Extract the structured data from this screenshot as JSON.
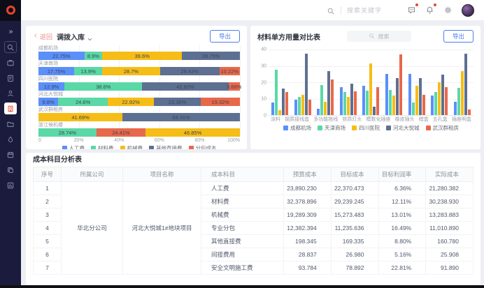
{
  "topbar": {
    "search_placeholder": "搜索关键字",
    "icons": [
      {
        "name": "message-icon",
        "glyph": "chat",
        "badge": true
      },
      {
        "name": "bell-icon",
        "glyph": "bell",
        "badge": true
      },
      {
        "name": "gear-icon",
        "glyph": "gear",
        "badge": false
      }
    ]
  },
  "sidebar": {
    "items": [
      {
        "name": "sidebar-collapse",
        "glyph": "collapse"
      },
      {
        "name": "sidebar-item-search",
        "glyph": "search",
        "boxed": true
      },
      {
        "name": "sidebar-item-briefcase",
        "glyph": "briefcase"
      },
      {
        "name": "sidebar-item-clipboard",
        "glyph": "clipboard"
      },
      {
        "name": "sidebar-item-user",
        "glyph": "user"
      },
      {
        "name": "sidebar-item-cost",
        "glyph": "building",
        "active": true
      },
      {
        "name": "sidebar-item-folder",
        "glyph": "folder"
      },
      {
        "name": "sidebar-item-droplet",
        "glyph": "droplet"
      },
      {
        "name": "sidebar-item-calendar",
        "glyph": "calendar"
      },
      {
        "name": "sidebar-item-copy",
        "glyph": "copy"
      },
      {
        "name": "sidebar-item-report",
        "glyph": "report"
      }
    ]
  },
  "left_panel": {
    "back_label": "返回",
    "title": "调拨入库",
    "export_label": "导出"
  },
  "right_panel": {
    "title": "材料单方用量对比表",
    "search_placeholder": "搜索",
    "export_label": "导出"
  },
  "colors": {
    "accent_blue": "#4c7df0",
    "active_red": "#e8442e",
    "series": [
      "#5B8FF9",
      "#5AD8A6",
      "#F6BD16",
      "#5D7092",
      "#E8684A"
    ]
  },
  "chart_data": [
    {
      "type": "bar",
      "stacked": true,
      "horizontal": true,
      "title": "调拨入库",
      "xlim": [
        0,
        100
      ],
      "x_ticks": [
        "0",
        "20%",
        "40%",
        "60%",
        "80%",
        "100%"
      ],
      "legend": [
        "人工费",
        "材料费",
        "机械费",
        "其他直接费",
        "分包成本"
      ],
      "legend_colors": [
        "#5B8FF9",
        "#5AD8A6",
        "#F6BD16",
        "#5D7092",
        "#E8684A"
      ],
      "rows": [
        {
          "category": "成都机场",
          "segments": [
            {
              "series": "人工费",
              "value": 22.75
            },
            {
              "series": "材料费",
              "value": 8.9
            },
            {
              "series": "机械费",
              "value": 39.6
            },
            {
              "series": "其他直接费",
              "value": 28.75
            }
          ]
        },
        {
          "category": "天津商场",
          "segments": [
            {
              "series": "人工费",
              "value": 17.75
            },
            {
              "series": "材料费",
              "value": 13.9
            },
            {
              "series": "机械费",
              "value": 28.7
            },
            {
              "series": "其他直接费",
              "value": 29.43
            },
            {
              "series": "分包成本",
              "value": 10.22
            }
          ]
        },
        {
          "category": "四川医院",
          "segments": [
            {
              "series": "人工费",
              "value": 12.9
            },
            {
              "series": "材料费",
              "value": 38.6
            },
            {
              "series": "其他直接费",
              "value": 42.82
            },
            {
              "series": "分包成本",
              "value": 5.68
            }
          ]
        },
        {
          "category": "河北大悦城",
          "segments": [
            {
              "series": "人工费",
              "value": 9.8
            },
            {
              "series": "材料费",
              "value": 24.6
            },
            {
              "series": "机械费",
              "value": 22.92
            },
            {
              "series": "其他直接费",
              "value": 23.36
            },
            {
              "series": "分包成本",
              "value": 19.32
            }
          ]
        },
        {
          "category": "武汉群租房",
          "segments": [
            {
              "series": "机械费",
              "value": 41.69
            },
            {
              "series": "其他直接费",
              "value": 58.31
            }
          ]
        },
        {
          "category": "浙江候机楼",
          "segments": [
            {
              "series": "材料费",
              "value": 28.74
            },
            {
              "series": "分包成本",
              "value": 24.41
            },
            {
              "series": "机械费",
              "value": 46.85
            }
          ]
        }
      ]
    },
    {
      "type": "bar",
      "title": "材料单方用量对比表",
      "ylim": [
        0,
        40
      ],
      "y_ticks": [
        0,
        10,
        20,
        30,
        40
      ],
      "grid": true,
      "legend_position": "bottom",
      "categories": [
        "涂料",
        "钢质接线盒",
        "多功能拖线",
        "铁质灯头",
        "模数化插座",
        "橡皮插头",
        "暗盒",
        "五孔盒",
        "插座明盒"
      ],
      "series": [
        {
          "name": "成都机场",
          "color": "#5B8FF9",
          "values": [
            7.5,
            9.5,
            4,
            17,
            18,
            25,
            25,
            12,
            8
          ]
        },
        {
          "name": "天津商场",
          "color": "#5AD8A6",
          "values": [
            27.5,
            11,
            18.5,
            14,
            15,
            15.5,
            7.5,
            14,
            16.5
          ]
        },
        {
          "name": "四川医院",
          "color": "#F6BD16",
          "values": [
            3,
            12.5,
            8,
            11,
            31.5,
            12,
            18,
            20,
            27
          ]
        },
        {
          "name": "河北大悦城",
          "color": "#5D7092",
          "values": [
            16,
            37.5,
            27,
            19,
            5,
            22.5,
            22.5,
            24.5,
            37.5
          ]
        },
        {
          "name": "武汉群租房",
          "color": "#E8684A",
          "values": [
            14,
            9.5,
            21.5,
            14.5,
            17,
            37,
            12.5,
            17,
            3.5
          ]
        }
      ]
    }
  ],
  "table_panel": {
    "title": "成本科目分析表",
    "columns": [
      "序号",
      "所属公司",
      "项目名称",
      "成本科目",
      "预算成本",
      "目标成本",
      "目标利润率",
      "实际成本"
    ],
    "company": "华北分公司",
    "project": "河北大悦城1#地块项目",
    "rows": [
      {
        "no": "1",
        "subject": "人工费",
        "budget": "23,890.230",
        "target": "22,370.473",
        "margin": "6.36%",
        "actual": "21,280.382"
      },
      {
        "no": "2",
        "subject": "材料费",
        "budget": "32,378.896",
        "target": "29,239.245",
        "margin": "12.11%",
        "actual": "30,238.930"
      },
      {
        "no": "3",
        "subject": "机械费",
        "budget": "19,289.309",
        "target": "15,273.483",
        "margin": "13.01%",
        "actual": "13,283.883"
      },
      {
        "no": "4",
        "subject": "专业分包",
        "budget": "12,382.394",
        "target": "11,235.636",
        "margin": "16.49%",
        "actual": "11,010.890"
      },
      {
        "no": "5",
        "subject": "其他直接费",
        "budget": "198.345",
        "target": "169.335",
        "margin": "8.80%",
        "actual": "160.780"
      },
      {
        "no": "6",
        "subject": "间接费用",
        "budget": "28.837",
        "target": "26.980",
        "margin": "5.16%",
        "actual": "25.908"
      },
      {
        "no": "7",
        "subject": "安全文明施工费",
        "budget": "93.784",
        "target": "78.892",
        "margin": "22.81%",
        "actual": "91.890"
      }
    ]
  }
}
